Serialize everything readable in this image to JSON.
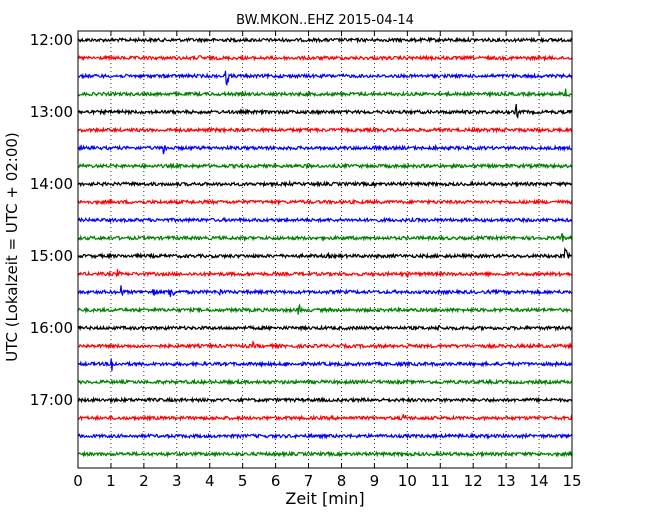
{
  "chart_data": {
    "type": "line",
    "title": "BW.MKON..EHZ 2015-04-14",
    "xlabel": "Zeit  [min]",
    "ylabel": "UTC (Lokalzeit = UTC + 02:00)",
    "xlim": [
      0,
      15
    ],
    "x_ticks": [
      "0",
      "1",
      "2",
      "3",
      "4",
      "5",
      "6",
      "7",
      "8",
      "9",
      "10",
      "11",
      "12",
      "13",
      "14",
      "15"
    ],
    "y_ticks": [
      "12:00",
      "13:00",
      "14:00",
      "15:00",
      "16:00",
      "17:00"
    ],
    "grid": "vertical-dotted",
    "trace_colors": [
      "#000000",
      "#ff0000",
      "#0000ff",
      "#008000"
    ],
    "traces": [
      {
        "start": "12:00",
        "color": "#000000",
        "events": []
      },
      {
        "start": "12:15",
        "color": "#ff0000",
        "events": [
          {
            "t": 3.7,
            "amp": 4
          }
        ]
      },
      {
        "start": "12:30",
        "color": "#0000ff",
        "events": [
          {
            "t": 4.5,
            "amp": 12
          }
        ]
      },
      {
        "start": "12:45",
        "color": "#008000",
        "events": [
          {
            "t": 14.8,
            "amp": 10
          }
        ]
      },
      {
        "start": "13:00",
        "color": "#000000",
        "events": [
          {
            "t": 13.3,
            "amp": 10
          }
        ]
      },
      {
        "start": "13:15",
        "color": "#ff0000",
        "events": [
          {
            "t": 14.0,
            "amp": 3
          }
        ]
      },
      {
        "start": "13:30",
        "color": "#0000ff",
        "events": [
          {
            "t": 2.6,
            "amp": 8
          },
          {
            "t": 9.0,
            "amp": 4
          },
          {
            "t": 10.8,
            "amp": 5
          }
        ]
      },
      {
        "start": "13:45",
        "color": "#008000",
        "events": []
      },
      {
        "start": "14:00",
        "color": "#000000",
        "events": [
          {
            "t": 6.4,
            "amp": 3
          }
        ]
      },
      {
        "start": "14:15",
        "color": "#ff0000",
        "events": []
      },
      {
        "start": "14:30",
        "color": "#0000ff",
        "events": []
      },
      {
        "start": "14:45",
        "color": "#008000",
        "events": [
          {
            "t": 9.2,
            "amp": 3
          },
          {
            "t": 14.7,
            "amp": 5
          }
        ]
      },
      {
        "start": "15:00",
        "color": "#000000",
        "events": [
          {
            "t": 7.6,
            "amp": 4
          },
          {
            "t": 14.8,
            "amp": 10
          }
        ]
      },
      {
        "start": "15:15",
        "color": "#ff0000",
        "events": [
          {
            "t": 1.2,
            "amp": 5
          },
          {
            "t": 10.0,
            "amp": 4
          },
          {
            "t": 14.6,
            "amp": 4
          }
        ]
      },
      {
        "start": "15:30",
        "color": "#0000ff",
        "events": [
          {
            "t": 1.3,
            "amp": 8
          },
          {
            "t": 2.3,
            "amp": 8
          },
          {
            "t": 2.8,
            "amp": 14
          },
          {
            "t": 4.3,
            "amp": 5
          }
        ]
      },
      {
        "start": "15:45",
        "color": "#008000",
        "events": [
          {
            "t": 6.7,
            "amp": 7
          },
          {
            "t": 12.8,
            "amp": 3
          }
        ]
      },
      {
        "start": "16:00",
        "color": "#000000",
        "events": [
          {
            "t": 10.9,
            "amp": 6
          }
        ]
      },
      {
        "start": "16:15",
        "color": "#ff0000",
        "events": [
          {
            "t": 5.3,
            "amp": 5
          },
          {
            "t": 10.0,
            "amp": 4
          }
        ]
      },
      {
        "start": "16:30",
        "color": "#0000ff",
        "events": [
          {
            "t": 1.0,
            "amp": 14
          },
          {
            "t": 6.3,
            "amp": 3
          }
        ]
      },
      {
        "start": "16:45",
        "color": "#008000",
        "events": []
      },
      {
        "start": "17:00",
        "color": "#000000",
        "events": []
      },
      {
        "start": "17:15",
        "color": "#ff0000",
        "events": [
          {
            "t": 9.9,
            "amp": 7
          },
          {
            "t": 10.7,
            "amp": 3
          },
          {
            "t": 14.1,
            "amp": 3
          }
        ]
      },
      {
        "start": "17:30",
        "color": "#0000ff",
        "events": [
          {
            "t": 3.2,
            "amp": 3
          }
        ]
      },
      {
        "start": "17:45",
        "color": "#008000",
        "events": []
      }
    ]
  }
}
